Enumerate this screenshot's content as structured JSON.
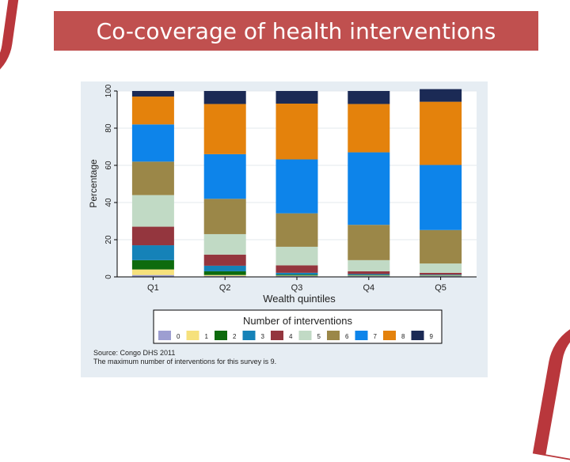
{
  "slide": {
    "title": "Co-coverage of health interventions"
  },
  "chart_data": {
    "type": "bar",
    "stacked": true,
    "xlabel": "Wealth quintiles",
    "ylabel": "Percentage",
    "ylim": [
      0,
      100
    ],
    "yticks": [
      "0",
      "20",
      "40",
      "60",
      "80",
      "100"
    ],
    "categories": [
      "Q1",
      "Q2",
      "Q3",
      "Q4",
      "Q5"
    ],
    "legend": {
      "title": "Number of interventions",
      "placement": "bottom"
    },
    "series": [
      {
        "name": "0",
        "color": "#9d9ed1",
        "values": [
          1,
          0.5,
          0.5,
          0.5,
          0.5
        ]
      },
      {
        "name": "1",
        "color": "#f6e17c",
        "values": [
          3,
          0.5,
          0.2,
          0.2,
          0.2
        ]
      },
      {
        "name": "2",
        "color": "#0e6b0e",
        "values": [
          5,
          2,
          0.5,
          0.3,
          0.2
        ]
      },
      {
        "name": "3",
        "color": "#1582b8",
        "values": [
          8,
          3,
          1,
          0.5,
          0.3
        ]
      },
      {
        "name": "4",
        "color": "#94363e",
        "values": [
          10,
          6,
          4,
          1.5,
          1
        ]
      },
      {
        "name": "5",
        "color": "#c1dac5",
        "values": [
          17,
          11,
          10,
          6,
          5
        ]
      },
      {
        "name": "6",
        "color": "#9b8748",
        "values": [
          18,
          19,
          18,
          19,
          18
        ]
      },
      {
        "name": "7",
        "color": "#0d84ea",
        "values": [
          20,
          24,
          29,
          39,
          35
        ]
      },
      {
        "name": "8",
        "color": "#e4820c",
        "values": [
          15,
          27,
          30,
          26,
          34
        ]
      },
      {
        "name": "9",
        "color": "#1b2a55",
        "values": [
          3,
          7,
          6.8,
          7,
          6.8
        ]
      }
    ],
    "notes": [
      "Source: Congo DHS 2011",
      "The maximum number of interventions for this survey is 9."
    ],
    "grid": true
  }
}
